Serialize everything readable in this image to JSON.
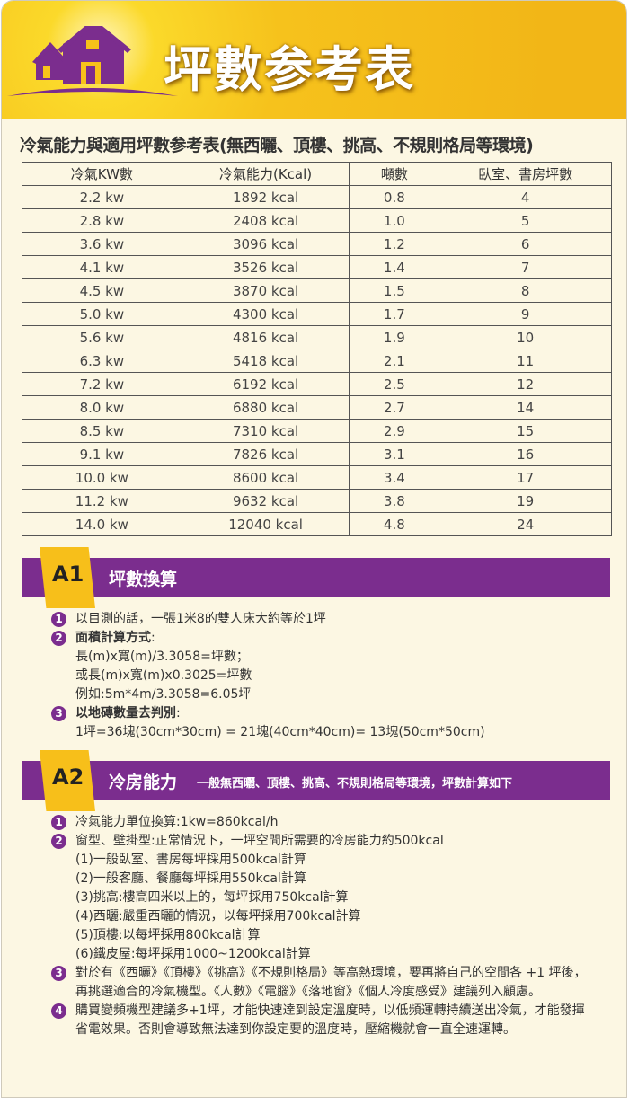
{
  "header": {
    "title": "坪數参考表"
  },
  "subtitle": "冷氣能力與適用坪數参考表(無西曬、頂樓、挑高、不規則格局等環境)",
  "table": {
    "columns": [
      "冷氣KW數",
      "冷氣能力(Kcal)",
      "噸數",
      "臥室、書房坪數"
    ],
    "rows": [
      [
        "2.2 kw",
        "1892 kcal",
        "0.8",
        "4"
      ],
      [
        "2.8 kw",
        "2408  kcal",
        "1.0",
        "5"
      ],
      [
        "3.6 kw",
        "3096  kcal",
        "1.2",
        "6"
      ],
      [
        "4.1 kw",
        "3526  kcal",
        "1.4",
        "7"
      ],
      [
        "4.5 kw",
        "3870  kcal",
        "1.5",
        "8"
      ],
      [
        "5.0 kw",
        "4300  kcal",
        "1.7",
        "9"
      ],
      [
        "5.6 kw",
        "4816  kcal",
        "1.9",
        "10"
      ],
      [
        "6.3 kw",
        "5418  kcal",
        "2.1",
        "11"
      ],
      [
        "7.2 kw",
        "6192  kcal",
        "2.5",
        "12"
      ],
      [
        "8.0 kw",
        "6880  kcal",
        "2.7",
        "14"
      ],
      [
        "8.5 kw",
        "7310  kcal",
        "2.9",
        "15"
      ],
      [
        "9.1 kw",
        "7826  kcal",
        "3.1",
        "16"
      ],
      [
        "10.0 kw",
        "8600  kcal",
        "3.4",
        "17"
      ],
      [
        "11.2 kw",
        "9632  kcal",
        "3.8",
        "19"
      ],
      [
        "14.0 kw",
        "12040  kcal",
        "4.8",
        "24"
      ]
    ]
  },
  "a1": {
    "badge": "A1",
    "title": "坪數換算",
    "items": [
      {
        "num": "1",
        "text": "以目測的話，一張1米8的雙人床大約等於1坪"
      },
      {
        "num": "2",
        "head": "面積計算方式",
        "tail": ":",
        "lines": [
          "長(m)x寬(m)/3.3058=坪數；",
          "或長(m)x寬(m)x0.3025=坪數",
          "例如:5m*4m/3.3058=6.05坪"
        ]
      },
      {
        "num": "3",
        "head": "以地磚數量去判別",
        "tail": ":",
        "lines": [
          "1坪=36塊(30cm*30cm) = 21塊(40cm*40cm)= 13塊(50cm*50cm)"
        ]
      }
    ]
  },
  "a2": {
    "badge": "A2",
    "title": "冷房能力",
    "subtitle": "一般無西曬、頂樓、挑高、不規則格局等環境，坪數計算如下",
    "items": [
      {
        "num": "1",
        "text": "冷氣能力單位換算:1kw=860kcal/h"
      },
      {
        "num": "2",
        "text": "窗型、壁掛型:正常情況下，一坪空間所需要的冷房能力約500kcal",
        "lines": [
          "(1)一般臥室、書房每坪採用500kcal計算",
          "(2)一般客廳、餐廳每坪採用550kcal計算",
          "(3)挑高:樓高四米以上的，每坪採用750kcal計算",
          "(4)西曬:嚴重西曬的情況，以每坪採用700kcal計算",
          "(5)頂樓:以每坪採用800kcal計算",
          "(6)鐵皮屋:每坪採用1000~1200kcal計算"
        ]
      },
      {
        "num": "3",
        "text": "對於有《西曬》《頂樓》《挑高》《不規則格局》等高熱環境，要再將自己的空間各 +1 坪後，再挑選適合的冷氣機型。《人數》《電腦》《落地窗》《個人冷度感受》建議列入顧慮。"
      },
      {
        "num": "4",
        "text": "購買變頻機型建議多+1坪，才能快速達到設定溫度時，以低頻運轉持續送出冷氣，才能發揮省電效果。否則會導致無法達到你設定要的溫度時，壓縮機就會一直全速運轉。"
      }
    ]
  },
  "colors": {
    "purple": "#7b2d8e",
    "yellow": "#f7bf1a",
    "cream": "#fcf7e3"
  }
}
